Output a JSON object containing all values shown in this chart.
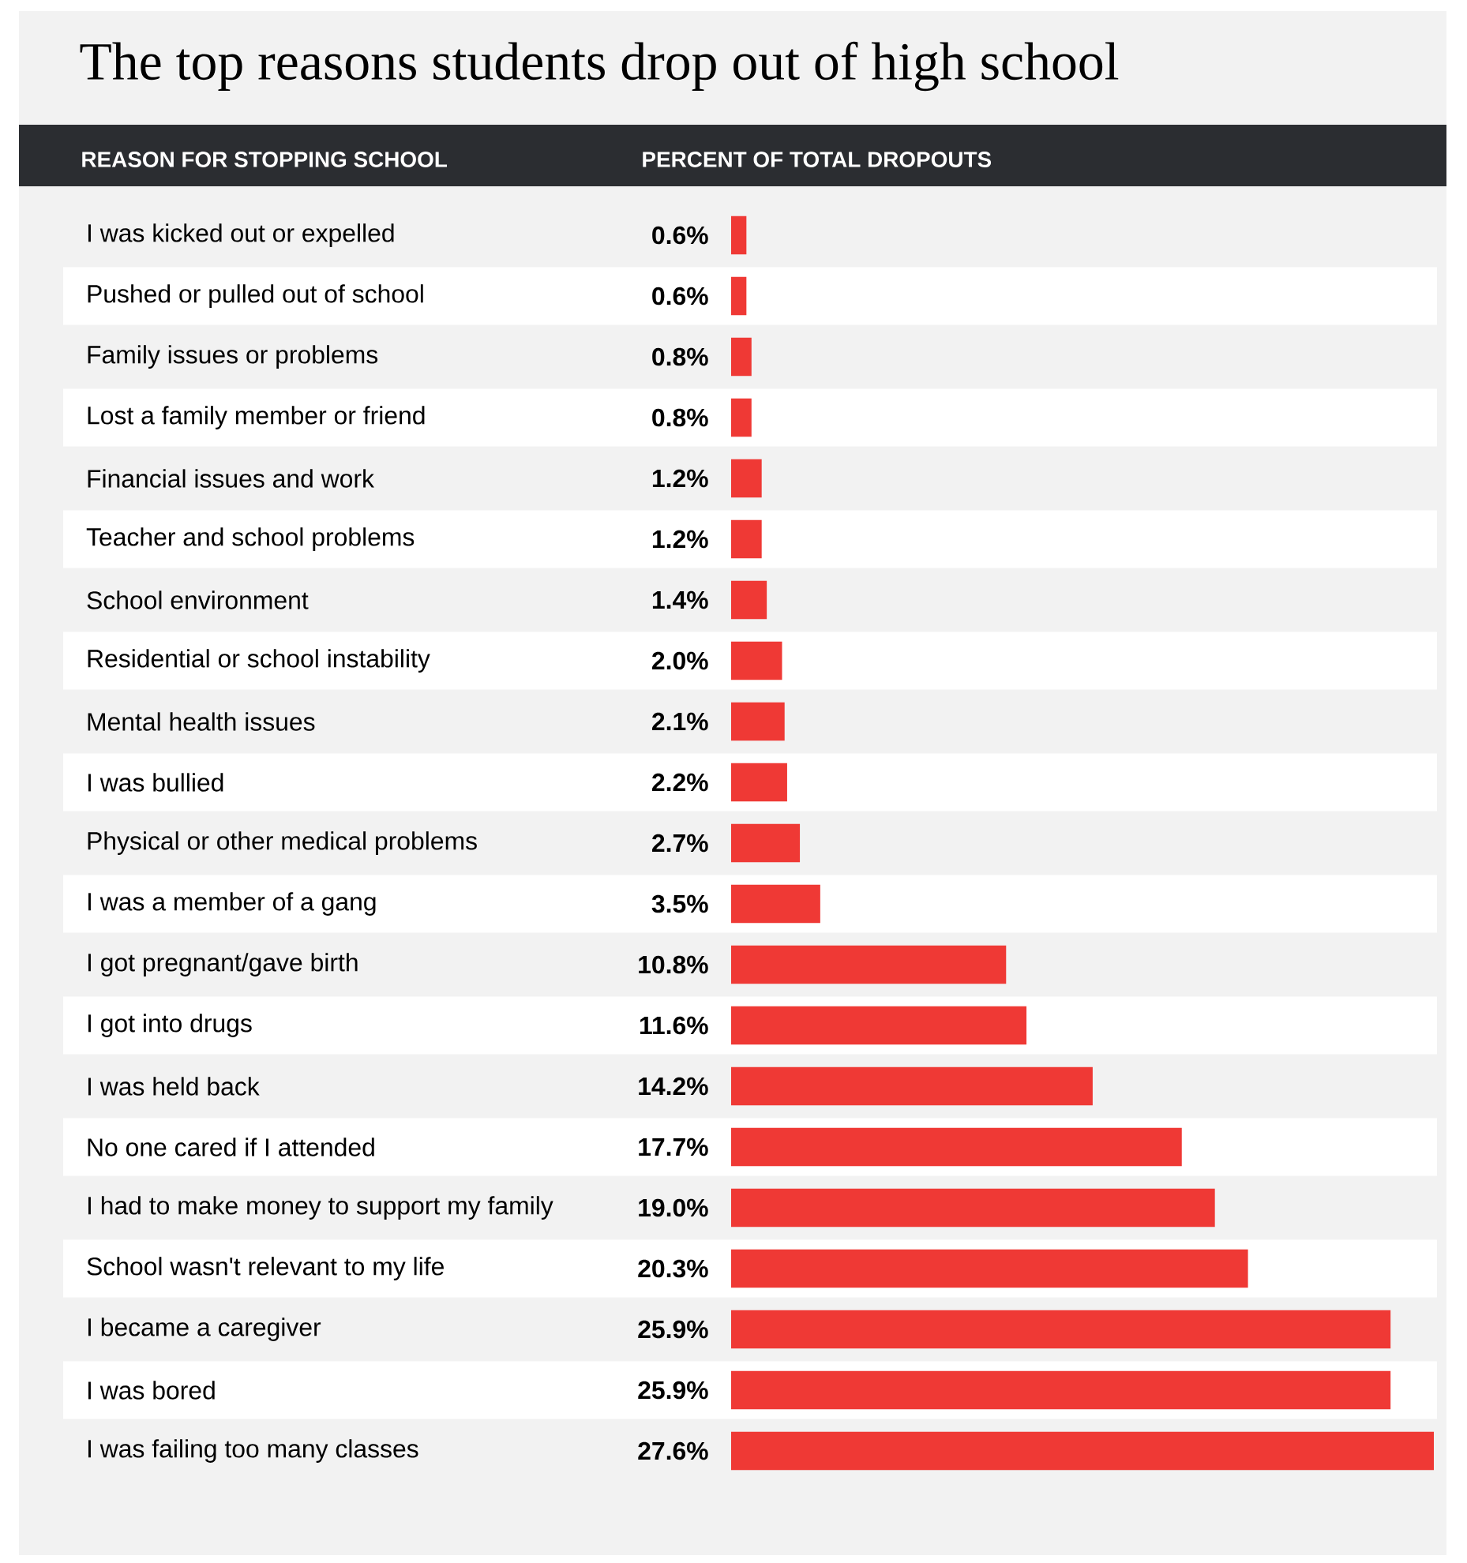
{
  "chart_data": {
    "type": "bar",
    "orientation": "horizontal",
    "title": "The top reasons students drop out of high school",
    "annotations": [
      "REASON FOR STOPPING SCHOOL",
      "PERCENT OF TOTAL DROPOUTS"
    ],
    "color": "#ef3935",
    "categories": [
      "I was kicked out or expelled",
      "Pushed or pulled out of school",
      "Family issues or problems",
      "Lost a family member or friend",
      "Financial issues and work",
      "Teacher and school problems",
      "School environment",
      "Residential or school instability",
      "Mental health issues",
      "I was bullied",
      "Physical or other medical problems",
      "I was a member of a gang",
      "I got pregnant/gave birth",
      "I got into drugs",
      "I was held back",
      "No one cared if I attended",
      "I had to make money to support my family",
      "School wasn't relevant to my life",
      "I became a caregiver",
      "I was bored",
      "I was failing too many classes"
    ],
    "values": [
      0.6,
      0.6,
      0.8,
      0.8,
      1.2,
      1.2,
      1.4,
      2.0,
      2.1,
      2.2,
      2.7,
      3.5,
      10.8,
      11.6,
      14.2,
      17.7,
      19.0,
      20.3,
      25.9,
      25.9,
      27.6
    ],
    "value_labels": [
      "0.6%",
      "0.6%",
      "0.8%",
      "0.8%",
      "1.2%",
      "1.2%",
      "1.4%",
      "2.0%",
      "2.1%",
      "2.2%",
      "2.7%",
      "3.5%",
      "10.8%",
      "11.6%",
      "14.2%",
      "17.7%",
      "19.0%",
      "20.3%",
      "25.9%",
      "25.9%",
      "27.6%"
    ]
  }
}
